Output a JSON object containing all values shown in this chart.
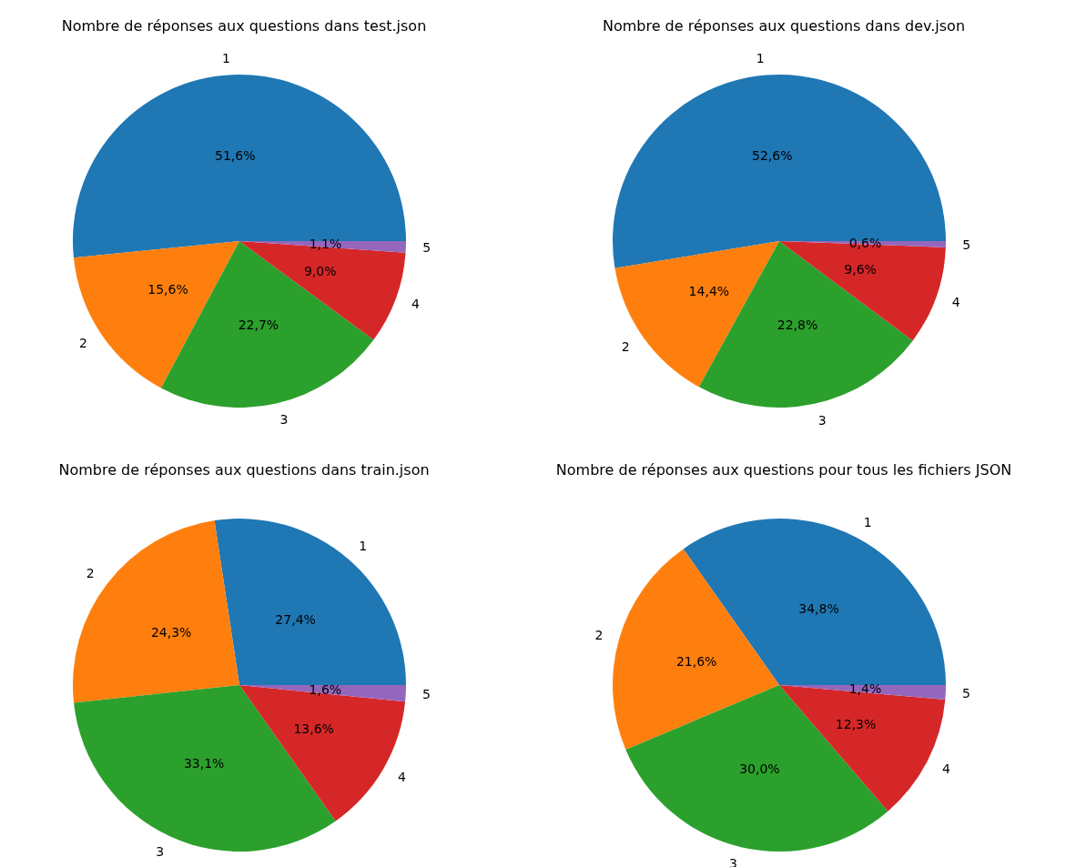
{
  "chart_data": [
    {
      "type": "pie",
      "title": "Nombre de réponses aux questions dans test.json",
      "categories": [
        "1",
        "2",
        "3",
        "4",
        "5"
      ],
      "values": [
        51.6,
        15.6,
        22.7,
        9.0,
        1.1
      ],
      "value_labels": [
        "51,6%",
        "15,6%",
        "22,7%",
        "9,0%",
        "1,1%"
      ],
      "colors": [
        "#1f77b4",
        "#ff7f0e",
        "#2ca02c",
        "#d62728",
        "#9467bd"
      ],
      "legend": false
    },
    {
      "type": "pie",
      "title": "Nombre de réponses aux questions dans dev.json",
      "categories": [
        "1",
        "2",
        "3",
        "4",
        "5"
      ],
      "values": [
        52.6,
        14.4,
        22.8,
        9.6,
        0.6
      ],
      "value_labels": [
        "52,6%",
        "14,4%",
        "22,8%",
        "9,6%",
        "0,6%"
      ],
      "colors": [
        "#1f77b4",
        "#ff7f0e",
        "#2ca02c",
        "#d62728",
        "#9467bd"
      ],
      "legend": false
    },
    {
      "type": "pie",
      "title": "Nombre de réponses aux questions dans train.json",
      "categories": [
        "1",
        "2",
        "3",
        "4",
        "5"
      ],
      "values": [
        27.4,
        24.3,
        33.1,
        13.6,
        1.6
      ],
      "value_labels": [
        "27,4%",
        "24,3%",
        "33,1%",
        "13,6%",
        "1,6%"
      ],
      "colors": [
        "#1f77b4",
        "#ff7f0e",
        "#2ca02c",
        "#d62728",
        "#9467bd"
      ],
      "legend": false
    },
    {
      "type": "pie",
      "title": "Nombre de réponses aux questions pour tous les fichiers JSON",
      "categories": [
        "1",
        "2",
        "3",
        "4",
        "5"
      ],
      "values": [
        34.8,
        21.6,
        30.0,
        12.3,
        1.4
      ],
      "value_labels": [
        "34,8%",
        "21,6%",
        "30,0%",
        "12,3%",
        "1,4%"
      ],
      "colors": [
        "#1f77b4",
        "#ff7f0e",
        "#2ca02c",
        "#d62728",
        "#9467bd"
      ],
      "legend": false
    }
  ]
}
